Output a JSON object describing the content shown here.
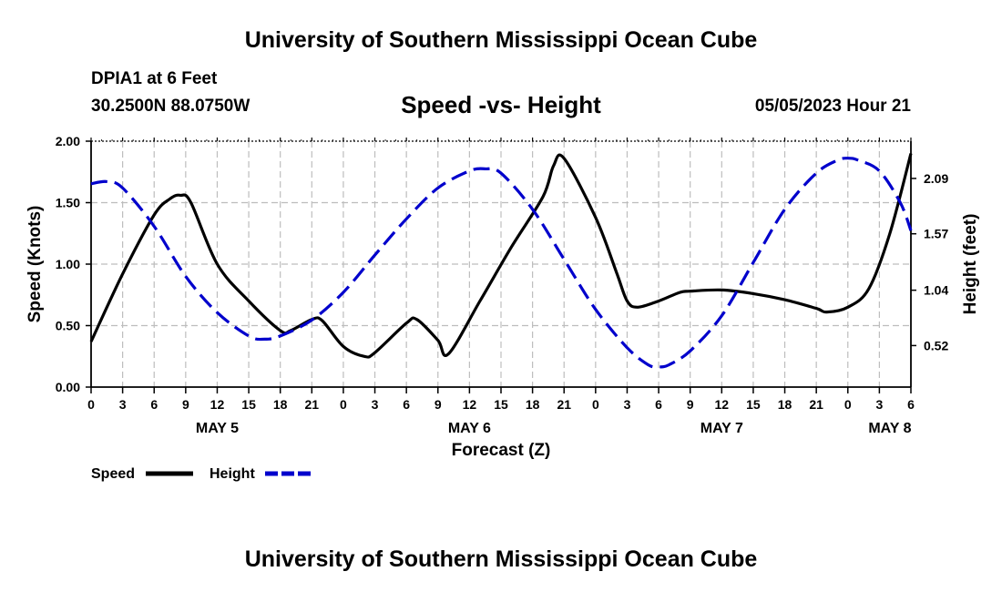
{
  "header": {
    "title": "University of Southern Mississippi Ocean Cube",
    "station": "DPIA1 at 6 Feet",
    "coordinates": "30.2500N  88.0750W",
    "subtitle": "Speed -vs- Height",
    "datetime": "05/05/2023 Hour 21"
  },
  "footer": {
    "title": "University of Southern Mississippi Ocean Cube"
  },
  "chart_data": {
    "type": "line",
    "title": "Speed -vs- Height",
    "xlabel": "Forecast (Z)",
    "ylabel": "Speed (Knots)",
    "y2label": "Height (feet)",
    "x_unit": "forecast hours",
    "xlim": [
      0,
      78
    ],
    "ylim": [
      0,
      2.0
    ],
    "y2lim": [
      0.13,
      2.44
    ],
    "grid": true,
    "x_ticks": [
      {
        "x": 0,
        "label": "0"
      },
      {
        "x": 3,
        "label": "3"
      },
      {
        "x": 6,
        "label": "6"
      },
      {
        "x": 9,
        "label": "9"
      },
      {
        "x": 12,
        "label": "12"
      },
      {
        "x": 15,
        "label": "15"
      },
      {
        "x": 18,
        "label": "18"
      },
      {
        "x": 21,
        "label": "21"
      },
      {
        "x": 24,
        "label": "0"
      },
      {
        "x": 27,
        "label": "3"
      },
      {
        "x": 30,
        "label": "6"
      },
      {
        "x": 33,
        "label": "9"
      },
      {
        "x": 36,
        "label": "12"
      },
      {
        "x": 39,
        "label": "15"
      },
      {
        "x": 42,
        "label": "18"
      },
      {
        "x": 45,
        "label": "21"
      },
      {
        "x": 48,
        "label": "0"
      },
      {
        "x": 51,
        "label": "3"
      },
      {
        "x": 54,
        "label": "6"
      },
      {
        "x": 57,
        "label": "9"
      },
      {
        "x": 60,
        "label": "12"
      },
      {
        "x": 63,
        "label": "15"
      },
      {
        "x": 66,
        "label": "18"
      },
      {
        "x": 69,
        "label": "21"
      },
      {
        "x": 72,
        "label": "0"
      },
      {
        "x": 75,
        "label": "3"
      },
      {
        "x": 78,
        "label": "6"
      }
    ],
    "day_labels": [
      {
        "x": 12,
        "label": "MAY 5"
      },
      {
        "x": 36,
        "label": "MAY 6"
      },
      {
        "x": 60,
        "label": "MAY 7"
      },
      {
        "x": 76,
        "label": "MAY 8"
      }
    ],
    "y_ticks": [
      "0.00",
      "0.50",
      "1.00",
      "1.50",
      "2.00"
    ],
    "y_tick_values": [
      0,
      0.5,
      1.0,
      1.5,
      2.0
    ],
    "y2_ticks": [
      "0.52",
      "1.04",
      "1.57",
      "2.09"
    ],
    "y2_tick_values": [
      0.52,
      1.04,
      1.57,
      2.09
    ],
    "legend": {
      "placement": "bottom-left",
      "entries": [
        {
          "name": "Speed",
          "color": "#000000",
          "style": "solid"
        },
        {
          "name": "Height",
          "color": "#0000cc",
          "style": "dashed"
        }
      ]
    },
    "series": [
      {
        "name": "Speed",
        "axis": "left",
        "color": "#000000",
        "x": [
          0,
          3,
          6,
          7.5,
          8.5,
          9.5,
          12,
          15,
          18,
          19,
          21,
          22,
          24,
          26,
          27,
          30,
          31,
          33,
          34,
          37,
          40,
          43,
          44,
          45,
          48,
          50,
          51,
          52,
          54,
          56,
          57,
          60,
          63,
          66,
          69,
          70,
          72,
          74,
          76,
          78
        ],
        "values": [
          0.37,
          0.92,
          1.4,
          1.53,
          1.56,
          1.5,
          1.0,
          0.7,
          0.46,
          0.46,
          0.55,
          0.54,
          0.33,
          0.25,
          0.28,
          0.52,
          0.55,
          0.38,
          0.27,
          0.7,
          1.14,
          1.55,
          1.8,
          1.86,
          1.38,
          0.93,
          0.7,
          0.65,
          0.7,
          0.77,
          0.78,
          0.79,
          0.76,
          0.71,
          0.64,
          0.61,
          0.65,
          0.8,
          1.25,
          1.9
        ]
      },
      {
        "name": "Height",
        "axis": "right",
        "color": "#0000cc",
        "x": [
          0,
          1.5,
          3,
          6,
          9,
          12,
          15,
          16.5,
          18,
          21,
          24,
          27,
          30,
          33,
          36,
          37.5,
          39,
          42,
          45,
          48,
          51,
          53,
          54,
          55,
          57,
          60,
          63,
          66,
          69,
          71,
          72,
          73,
          75,
          77,
          78
        ],
        "values": [
          2.04,
          2.06,
          2.0,
          1.64,
          1.17,
          0.83,
          0.61,
          0.58,
          0.61,
          0.76,
          1.02,
          1.37,
          1.71,
          2.0,
          2.16,
          2.18,
          2.14,
          1.8,
          1.33,
          0.86,
          0.5,
          0.34,
          0.32,
          0.34,
          0.47,
          0.8,
          1.3,
          1.8,
          2.14,
          2.26,
          2.28,
          2.26,
          2.16,
          1.86,
          1.6
        ]
      }
    ]
  }
}
